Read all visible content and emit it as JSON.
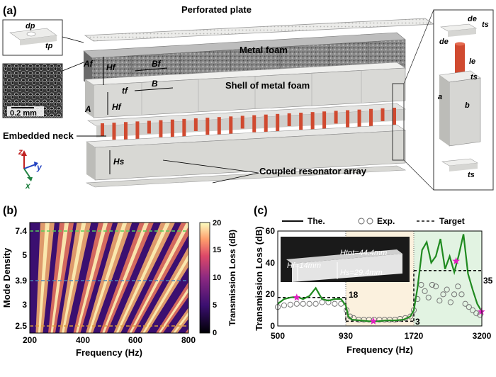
{
  "panel_a": {
    "label": "(a)",
    "perforated_plate": "Perforated plate",
    "metal_foam": "Metal foam",
    "shell": "Shell of metal foam",
    "embedded_neck": "Embedded neck",
    "coupled_array": "Coupled resonator array",
    "scale_bar": "0.2 mm",
    "dims": {
      "dp": "dp",
      "tp": "tp",
      "Af": "Af",
      "Hf": "Hf",
      "Bf": "Bf",
      "B": "B",
      "tf": "tf",
      "A": "A",
      "Hs": "Hs",
      "de": "de",
      "ts": "ts",
      "le": "le",
      "a": "a",
      "b": "b"
    },
    "axes": {
      "z": "z",
      "y": "y",
      "x": "x"
    },
    "colors": {
      "neck": "#d04a30",
      "foam": "#7a7a7a",
      "shell": "#d9d9d6",
      "axis_z": "#c02020",
      "axis_y": "#2040c0",
      "axis_x": "#208040"
    }
  },
  "panel_b": {
    "label": "(b)",
    "ylabel": "Mode Density",
    "xlabel": "Frequency (Hz)",
    "colorbar_label": "Transmission Loss (dB)",
    "xticks": [
      "200",
      "400",
      "600",
      "800"
    ],
    "yticks": [
      "7.4",
      "5",
      "3.9",
      "3",
      "2.5"
    ],
    "cbar_ticks": [
      "0",
      "5",
      "10",
      "15",
      "20"
    ]
  },
  "chart_data": {
    "type": "line",
    "title": "",
    "xlabel": "Frequency (Hz)",
    "ylabel": "Transmission Loss (dB)",
    "xticks": [
      "500",
      "930",
      "1720",
      "3200"
    ],
    "yticks": [
      "0",
      "20",
      "40",
      "60"
    ],
    "ylim": [
      0,
      60
    ],
    "legend": [
      "The.",
      "Exp.",
      "Target"
    ],
    "legend_position": "top",
    "series": [
      {
        "name": "The.",
        "style": "line",
        "color": "#1f8a1f",
        "x": [
          500,
          540,
          580,
          620,
          660,
          700,
          740,
          780,
          820,
          860,
          900,
          930,
          960,
          1000,
          1100,
          1200,
          1300,
          1400,
          1500,
          1600,
          1680,
          1720,
          1800,
          1900,
          2000,
          2100,
          2200,
          2300,
          2400,
          2500,
          2600,
          2700,
          2800,
          2900,
          3000,
          3100,
          3200
        ],
        "y": [
          14,
          17,
          18,
          18.5,
          17,
          19,
          24,
          17,
          16,
          17,
          17,
          13,
          6,
          4,
          3.5,
          3,
          3,
          3.5,
          3.5,
          4,
          6,
          10,
          24,
          48,
          53,
          40,
          44,
          55,
          36,
          44,
          34,
          45,
          58,
          33,
          23,
          14,
          9
        ]
      },
      {
        "name": "Exp.",
        "style": "markers",
        "color": "#777777",
        "x": [
          500,
          540,
          580,
          620,
          660,
          700,
          740,
          780,
          820,
          860,
          900,
          940,
          980,
          1020,
          1080,
          1140,
          1200,
          1260,
          1320,
          1380,
          1440,
          1500,
          1560,
          1620,
          1680,
          1720,
          1800,
          1880,
          1960,
          2040,
          2120,
          2200,
          2280,
          2360,
          2440,
          2520,
          2600,
          2680,
          2760,
          2840,
          2920,
          3000,
          3080,
          3160
        ],
        "y": [
          12,
          13,
          13.5,
          14,
          14,
          14,
          14,
          15,
          15,
          14,
          14,
          10,
          6,
          5,
          4,
          4,
          4,
          4,
          4,
          4,
          4,
          4,
          4.5,
          5,
          6,
          10,
          17,
          26,
          22,
          18,
          26,
          25,
          16,
          20,
          23,
          15,
          20,
          25,
          20,
          14,
          12,
          10,
          8,
          7
        ]
      },
      {
        "name": "Target",
        "style": "dashed",
        "color": "#111111",
        "segments": [
          {
            "x": [
              500,
              930
            ],
            "y": 18,
            "label": "18"
          },
          {
            "x": [
              930,
              1720
            ],
            "y": 3,
            "label": "3"
          },
          {
            "x": [
              1720,
              3200
            ],
            "y": 35,
            "label": "35"
          }
        ]
      }
    ],
    "star_markers": {
      "x": [
        620,
        1250,
        2640,
        3190
      ],
      "y": [
        18,
        3,
        41,
        9
      ],
      "color": "#e020c0"
    },
    "bands": [
      {
        "x": [
          930,
          1720
        ],
        "color": "#fbf1de"
      },
      {
        "x": [
          1720,
          3200
        ],
        "color": "#e2f3e2"
      }
    ],
    "inset": {
      "Hf": "Hf=14mm",
      "Htot": "Htot=44.4mm",
      "Hs": "Hs=29.4mm"
    }
  },
  "panel_c": {
    "label": "(c)"
  }
}
